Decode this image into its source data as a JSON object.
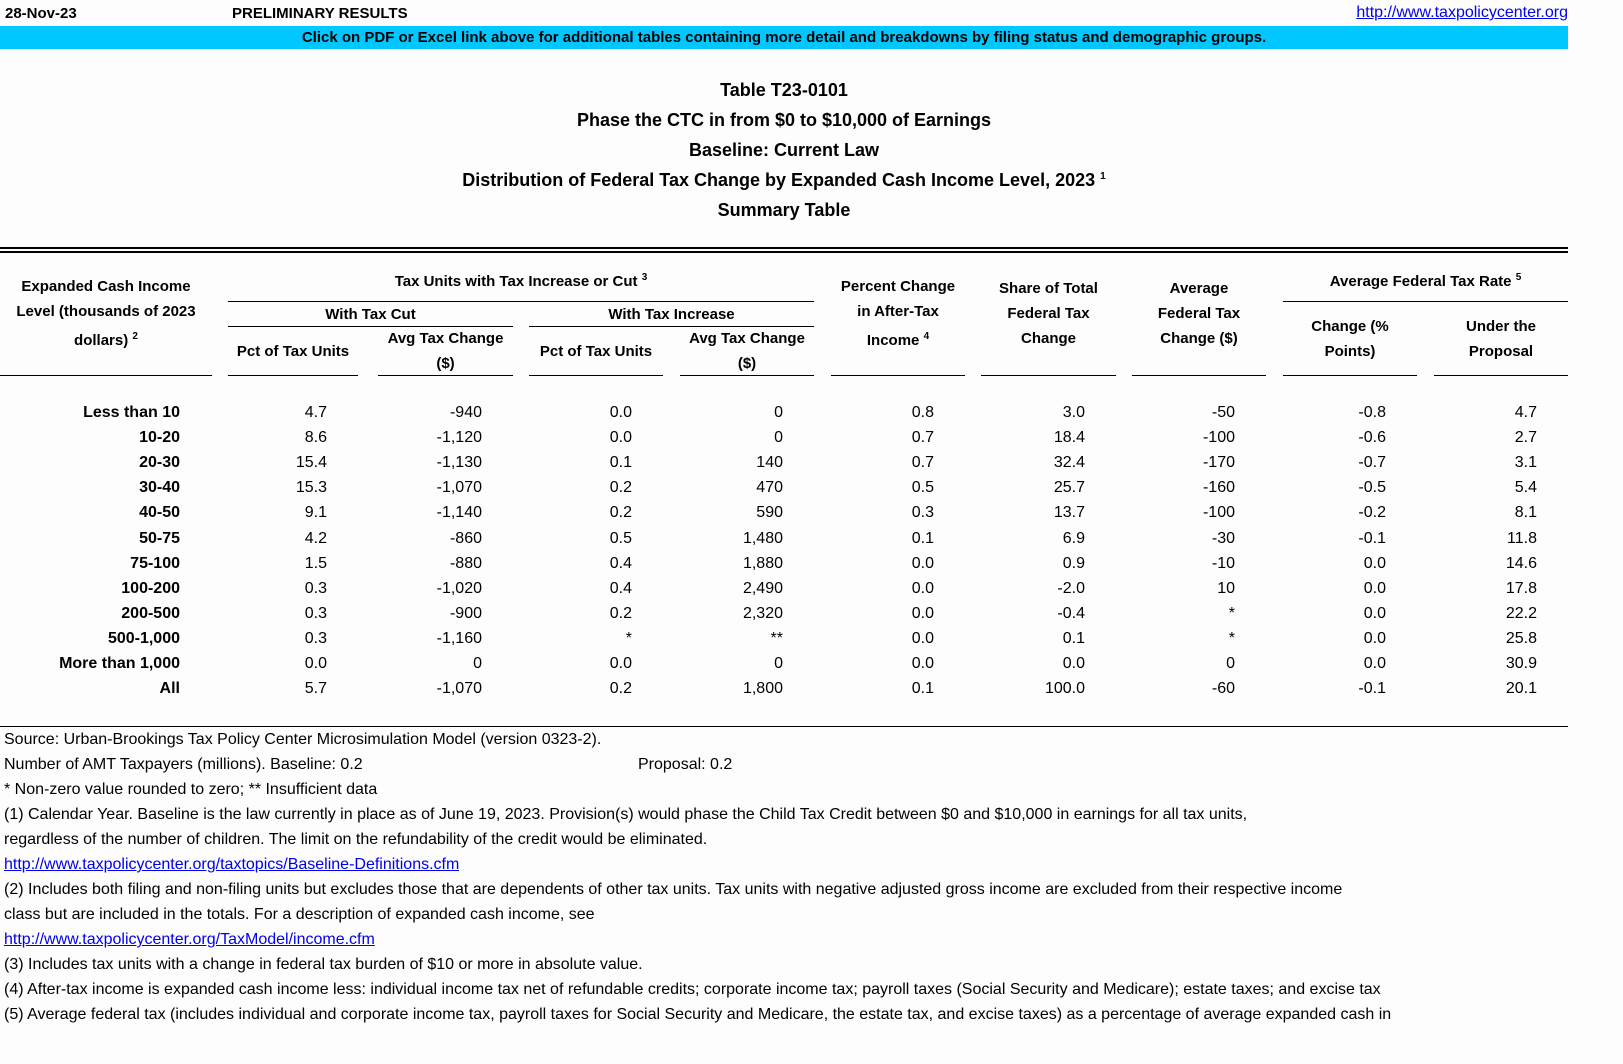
{
  "topbar": {
    "date": "28-Nov-23",
    "status": "PRELIMINARY RESULTS",
    "url": "http://www.taxpolicycenter.org"
  },
  "banner": "Click on PDF or Excel link above for additional tables containing more detail and breakdowns by filing status and demographic groups.",
  "titles": [
    "Table T23-0101",
    "Phase the CTC in from $0 to $10,000 of Earnings",
    "Baseline: Current Law",
    "Distribution of Federal Tax Change by Expanded Cash Income Level, 2023",
    "Summary Table"
  ],
  "title_footnote": "1",
  "headers": {
    "income": {
      "line1": "Expanded Cash Income",
      "line2": "Level (thousands of 2023",
      "line3": "dollars)",
      "fn": "2"
    },
    "tax_units": {
      "label": "Tax Units with Tax Increase or Cut",
      "fn": "3"
    },
    "with_cut": "With Tax Cut",
    "with_increase": "With Tax Increase",
    "pct_units": "Pct of Tax Units",
    "avg_change_l1": "Avg Tax Change",
    "avg_change_l2": "($)",
    "pct_change": {
      "line1": "Percent Change",
      "line2": "in After-Tax",
      "line3": "Income",
      "fn": "4"
    },
    "share": {
      "line1": "Share of Total",
      "line2": "Federal Tax",
      "line3": "Change"
    },
    "avg_fed": {
      "line1": "Average",
      "line2": "Federal Tax",
      "line3": "Change ($)"
    },
    "rate": {
      "label": "Average Federal Tax Rate",
      "fn": "5"
    },
    "rate_change": {
      "line1": "Change (%",
      "line2": "Points)"
    },
    "rate_under": {
      "line1": "Under the",
      "line2": "Proposal"
    }
  },
  "rows": [
    {
      "label": "Less than 10",
      "values": [
        "4.7",
        "-940",
        "0.0",
        "0",
        "0.8",
        "3.0",
        "-50",
        "-0.8",
        "4.7"
      ]
    },
    {
      "label": "10-20",
      "values": [
        "8.6",
        "-1,120",
        "0.0",
        "0",
        "0.7",
        "18.4",
        "-100",
        "-0.6",
        "2.7"
      ]
    },
    {
      "label": "20-30",
      "values": [
        "15.4",
        "-1,130",
        "0.1",
        "140",
        "0.7",
        "32.4",
        "-170",
        "-0.7",
        "3.1"
      ]
    },
    {
      "label": "30-40",
      "values": [
        "15.3",
        "-1,070",
        "0.2",
        "470",
        "0.5",
        "25.7",
        "-160",
        "-0.5",
        "5.4"
      ]
    },
    {
      "label": "40-50",
      "values": [
        "9.1",
        "-1,140",
        "0.2",
        "590",
        "0.3",
        "13.7",
        "-100",
        "-0.2",
        "8.1"
      ]
    },
    {
      "label": "50-75",
      "values": [
        "4.2",
        "-860",
        "0.5",
        "1,480",
        "0.1",
        "6.9",
        "-30",
        "-0.1",
        "11.8"
      ]
    },
    {
      "label": "75-100",
      "values": [
        "1.5",
        "-880",
        "0.4",
        "1,880",
        "0.0",
        "0.9",
        "-10",
        "0.0",
        "14.6"
      ]
    },
    {
      "label": "100-200",
      "values": [
        "0.3",
        "-1,020",
        "0.4",
        "2,490",
        "0.0",
        "-2.0",
        "10",
        "0.0",
        "17.8"
      ]
    },
    {
      "label": "200-500",
      "values": [
        "0.3",
        "-900",
        "0.2",
        "2,320",
        "0.0",
        "-0.4",
        "*",
        "0.0",
        "22.2"
      ]
    },
    {
      "label": "500-1,000",
      "values": [
        "0.3",
        "-1,160",
        "*",
        "**",
        "0.0",
        "0.1",
        "*",
        "0.0",
        "25.8"
      ]
    },
    {
      "label": "More than 1,000",
      "values": [
        "0.0",
        "0",
        "0.0",
        "0",
        "0.0",
        "0.0",
        "0",
        "0.0",
        "30.9"
      ]
    },
    {
      "label": "All",
      "values": [
        "5.7",
        "-1,070",
        "0.2",
        "1,800",
        "0.1",
        "100.0",
        "-60",
        "-0.1",
        "20.1"
      ]
    }
  ],
  "footnotes": {
    "source": "Source: Urban-Brookings Tax Policy Center Microsimulation Model (version 0323-2).",
    "amt": "Number of AMT Taxpayers (millions).  Baseline: 0.2",
    "amt_proposal": "Proposal: 0.2",
    "legend": "* Non-zero value rounded to zero; ** Insufficient data",
    "fn1a": "(1) Calendar Year. Baseline is the law currently in place as of June 19, 2023. Provision(s) would phase the Child Tax Credit between $0 and $10,000 in earnings for all tax units,",
    "fn1b": " regardless of the number of children. The limit on the refundability of the credit would be eliminated.",
    "link1": "http://www.taxpolicycenter.org/taxtopics/Baseline-Definitions.cfm",
    "fn2a": "(2) Includes both filing and non-filing units but excludes those that are dependents of other tax units. Tax units with negative adjusted gross income are excluded from their respective income",
    "fn2b": "class but are included in the totals. For a description of expanded cash income, see",
    "link2": "http://www.taxpolicycenter.org/TaxModel/income.cfm",
    "fn3": "(3) Includes tax units with a change in federal tax burden of $10 or more in absolute value.",
    "fn4": "(4) After-tax income is expanded cash income less: individual income tax net of refundable credits; corporate income tax; payroll taxes (Social Security and Medicare); estate taxes; and excise tax",
    "fn5": "(5) Average federal tax (includes individual and corporate income tax, payroll taxes for Social Security and Medicare, the estate tax, and excise taxes) as a percentage of average expanded cash in"
  },
  "colors": {
    "banner": "#00c8ff",
    "link": "#0000ee"
  }
}
